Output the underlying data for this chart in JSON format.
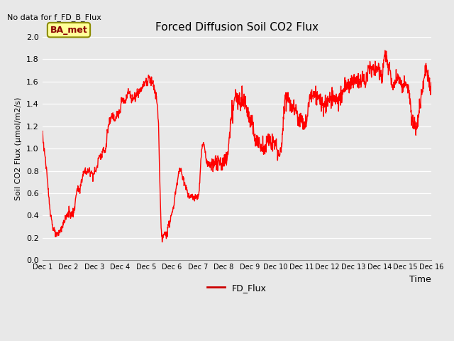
{
  "title": "Forced Diffusion Soil CO2 Flux",
  "no_data_text": "No data for f_FD_B_Flux",
  "xlabel": "Time",
  "ylabel": "Soil CO2 Flux (μmol/m2/s)",
  "ylim": [
    0.0,
    2.0
  ],
  "yticks": [
    0.0,
    0.2,
    0.4,
    0.6,
    0.8,
    1.0,
    1.2,
    1.4,
    1.6,
    1.8,
    2.0
  ],
  "line_color": "#FF0000",
  "line_width": 1.0,
  "bg_color": "#E8E8E8",
  "legend_label": "FD_Flux",
  "legend_line_color": "#CC0000",
  "inset_label": "BA_met",
  "inset_bg": "#FFFF99",
  "inset_border": "#8B8B00",
  "xtick_labels": [
    "Dec 1",
    "Dec 2",
    "Dec 3",
    "Dec 4",
    "Dec 5",
    "Dec 6",
    "Dec 7",
    "Dec 8",
    "Dec 9",
    "Dec 10",
    "Dec 11",
    "Dec 12",
    "Dec 13",
    "Dec 14",
    "Dec 15",
    "Dec 16"
  ],
  "waypoints": [
    [
      0.0,
      1.17
    ],
    [
      0.05,
      1.03
    ],
    [
      0.1,
      0.95
    ],
    [
      0.2,
      0.7
    ],
    [
      0.3,
      0.45
    ],
    [
      0.4,
      0.3
    ],
    [
      0.5,
      0.23
    ],
    [
      0.55,
      0.22
    ],
    [
      0.6,
      0.23
    ],
    [
      0.65,
      0.25
    ],
    [
      0.7,
      0.27
    ],
    [
      0.75,
      0.29
    ],
    [
      0.8,
      0.32
    ],
    [
      0.9,
      0.38
    ],
    [
      1.0,
      0.42
    ],
    [
      1.05,
      0.44
    ],
    [
      1.1,
      0.4
    ],
    [
      1.15,
      0.42
    ],
    [
      1.2,
      0.43
    ],
    [
      1.25,
      0.45
    ],
    [
      1.3,
      0.6
    ],
    [
      1.35,
      0.63
    ],
    [
      1.4,
      0.63
    ],
    [
      1.45,
      0.6
    ],
    [
      1.5,
      0.71
    ],
    [
      1.55,
      0.75
    ],
    [
      1.6,
      0.78
    ],
    [
      1.65,
      0.8
    ],
    [
      1.7,
      0.79
    ],
    [
      1.75,
      0.79
    ],
    [
      1.8,
      0.8
    ],
    [
      1.85,
      0.8
    ],
    [
      1.9,
      0.79
    ],
    [
      1.95,
      0.77
    ],
    [
      2.0,
      0.78
    ],
    [
      2.05,
      0.8
    ],
    [
      2.1,
      0.82
    ],
    [
      2.15,
      0.88
    ],
    [
      2.2,
      0.95
    ],
    [
      2.25,
      0.93
    ],
    [
      2.3,
      0.95
    ],
    [
      2.35,
      1.0
    ],
    [
      2.4,
      0.96
    ],
    [
      2.45,
      1.0
    ],
    [
      2.5,
      1.13
    ],
    [
      2.55,
      1.2
    ],
    [
      2.6,
      1.22
    ],
    [
      2.65,
      1.27
    ],
    [
      2.7,
      1.3
    ],
    [
      2.75,
      1.28
    ],
    [
      2.8,
      1.27
    ],
    [
      2.85,
      1.3
    ],
    [
      2.9,
      1.32
    ],
    [
      2.95,
      1.31
    ],
    [
      3.0,
      1.31
    ],
    [
      3.05,
      1.43
    ],
    [
      3.1,
      1.43
    ],
    [
      3.15,
      1.42
    ],
    [
      3.2,
      1.42
    ],
    [
      3.25,
      1.48
    ],
    [
      3.3,
      1.5
    ],
    [
      3.35,
      1.5
    ],
    [
      3.4,
      1.48
    ],
    [
      3.45,
      1.44
    ],
    [
      3.5,
      1.45
    ],
    [
      3.55,
      1.47
    ],
    [
      3.6,
      1.45
    ],
    [
      3.65,
      1.5
    ],
    [
      3.7,
      1.5
    ],
    [
      3.75,
      1.52
    ],
    [
      3.8,
      1.53
    ],
    [
      3.85,
      1.55
    ],
    [
      3.9,
      1.57
    ],
    [
      3.95,
      1.6
    ],
    [
      4.0,
      1.6
    ],
    [
      4.05,
      1.58
    ],
    [
      4.1,
      1.65
    ],
    [
      4.15,
      1.62
    ],
    [
      4.2,
      1.61
    ],
    [
      4.25,
      1.6
    ],
    [
      4.3,
      1.55
    ],
    [
      4.35,
      1.5
    ],
    [
      4.4,
      1.45
    ],
    [
      4.42,
      1.42
    ],
    [
      4.45,
      1.35
    ],
    [
      4.48,
      1.22
    ],
    [
      4.5,
      1.05
    ],
    [
      4.52,
      0.85
    ],
    [
      4.54,
      0.65
    ],
    [
      4.56,
      0.45
    ],
    [
      4.58,
      0.3
    ],
    [
      4.6,
      0.22
    ],
    [
      4.62,
      0.2
    ],
    [
      4.65,
      0.2
    ],
    [
      4.67,
      0.21
    ],
    [
      4.7,
      0.22
    ],
    [
      4.75,
      0.23
    ],
    [
      4.8,
      0.25
    ],
    [
      4.85,
      0.28
    ],
    [
      4.9,
      0.32
    ],
    [
      4.95,
      0.38
    ],
    [
      5.0,
      0.42
    ],
    [
      5.05,
      0.45
    ],
    [
      5.1,
      0.55
    ],
    [
      5.15,
      0.62
    ],
    [
      5.2,
      0.7
    ],
    [
      5.25,
      0.77
    ],
    [
      5.3,
      0.82
    ],
    [
      5.35,
      0.8
    ],
    [
      5.4,
      0.75
    ],
    [
      5.45,
      0.72
    ],
    [
      5.5,
      0.68
    ],
    [
      5.55,
      0.65
    ],
    [
      5.6,
      0.6
    ],
    [
      5.65,
      0.57
    ],
    [
      5.7,
      0.56
    ],
    [
      5.75,
      0.57
    ],
    [
      5.8,
      0.56
    ],
    [
      5.85,
      0.56
    ],
    [
      5.9,
      0.55
    ],
    [
      5.95,
      0.56
    ],
    [
      6.0,
      0.57
    ],
    [
      6.05,
      0.6
    ],
    [
      6.1,
      0.82
    ],
    [
      6.15,
      1.0
    ],
    [
      6.2,
      1.04
    ],
    [
      6.25,
      1.04
    ],
    [
      6.3,
      0.93
    ],
    [
      6.35,
      0.88
    ],
    [
      6.4,
      0.86
    ],
    [
      6.45,
      0.85
    ],
    [
      6.5,
      0.84
    ],
    [
      6.55,
      0.88
    ],
    [
      6.6,
      0.88
    ],
    [
      6.65,
      0.86
    ],
    [
      6.7,
      0.87
    ],
    [
      6.75,
      0.86
    ],
    [
      6.8,
      0.88
    ],
    [
      6.85,
      0.88
    ],
    [
      6.9,
      0.87
    ],
    [
      6.95,
      0.87
    ],
    [
      7.0,
      0.88
    ],
    [
      7.05,
      0.88
    ],
    [
      7.1,
      0.89
    ],
    [
      7.15,
      0.95
    ],
    [
      7.2,
      1.05
    ],
    [
      7.25,
      1.18
    ],
    [
      7.3,
      1.27
    ],
    [
      7.35,
      1.33
    ],
    [
      7.4,
      1.44
    ],
    [
      7.45,
      1.48
    ],
    [
      7.5,
      1.44
    ],
    [
      7.55,
      1.42
    ],
    [
      7.6,
      1.45
    ],
    [
      7.65,
      1.45
    ],
    [
      7.7,
      1.47
    ],
    [
      7.75,
      1.44
    ],
    [
      7.8,
      1.44
    ],
    [
      7.85,
      1.42
    ],
    [
      7.9,
      1.35
    ],
    [
      7.95,
      1.3
    ],
    [
      8.0,
      1.28
    ],
    [
      8.05,
      1.25
    ],
    [
      8.1,
      1.22
    ],
    [
      8.15,
      1.15
    ],
    [
      8.2,
      1.1
    ],
    [
      8.25,
      1.08
    ],
    [
      8.3,
      1.07
    ],
    [
      8.35,
      1.05
    ],
    [
      8.4,
      1.02
    ],
    [
      8.45,
      1.0
    ],
    [
      8.5,
      1.0
    ],
    [
      8.55,
      1.02
    ],
    [
      8.6,
      1.02
    ],
    [
      8.65,
      1.05
    ],
    [
      8.7,
      1.07
    ],
    [
      8.75,
      1.07
    ],
    [
      8.8,
      1.07
    ],
    [
      8.85,
      1.06
    ],
    [
      8.9,
      1.05
    ],
    [
      8.95,
      1.04
    ],
    [
      9.0,
      1.03
    ],
    [
      9.05,
      1.0
    ],
    [
      9.1,
      0.97
    ],
    [
      9.15,
      0.96
    ],
    [
      9.2,
      0.97
    ],
    [
      9.25,
      1.05
    ],
    [
      9.3,
      1.28
    ],
    [
      9.35,
      1.45
    ],
    [
      9.4,
      1.46
    ],
    [
      9.45,
      1.46
    ],
    [
      9.5,
      1.45
    ],
    [
      9.55,
      1.42
    ],
    [
      9.6,
      1.4
    ],
    [
      9.65,
      1.38
    ],
    [
      9.7,
      1.37
    ],
    [
      9.75,
      1.35
    ],
    [
      9.8,
      1.33
    ],
    [
      9.85,
      1.28
    ],
    [
      9.9,
      1.27
    ],
    [
      9.95,
      1.27
    ],
    [
      10.0,
      1.28
    ],
    [
      10.05,
      1.25
    ],
    [
      10.1,
      1.22
    ],
    [
      10.15,
      1.2
    ],
    [
      10.2,
      1.25
    ],
    [
      10.25,
      1.35
    ],
    [
      10.3,
      1.42
    ],
    [
      10.35,
      1.47
    ],
    [
      10.4,
      1.5
    ],
    [
      10.45,
      1.5
    ],
    [
      10.5,
      1.5
    ],
    [
      10.55,
      1.48
    ],
    [
      10.6,
      1.46
    ],
    [
      10.65,
      1.44
    ],
    [
      10.7,
      1.43
    ],
    [
      10.75,
      1.42
    ],
    [
      10.8,
      1.4
    ],
    [
      10.85,
      1.38
    ],
    [
      10.9,
      1.38
    ],
    [
      10.95,
      1.4
    ],
    [
      11.0,
      1.4
    ],
    [
      11.05,
      1.42
    ],
    [
      11.1,
      1.45
    ],
    [
      11.15,
      1.45
    ],
    [
      11.2,
      1.45
    ],
    [
      11.25,
      1.45
    ],
    [
      11.3,
      1.44
    ],
    [
      11.35,
      1.43
    ],
    [
      11.4,
      1.44
    ],
    [
      11.45,
      1.45
    ],
    [
      11.5,
      1.45
    ],
    [
      11.55,
      1.47
    ],
    [
      11.6,
      1.5
    ],
    [
      11.65,
      1.55
    ],
    [
      11.7,
      1.58
    ],
    [
      11.75,
      1.58
    ],
    [
      11.8,
      1.58
    ],
    [
      11.85,
      1.57
    ],
    [
      11.9,
      1.57
    ],
    [
      11.95,
      1.58
    ],
    [
      12.0,
      1.6
    ],
    [
      12.05,
      1.62
    ],
    [
      12.1,
      1.62
    ],
    [
      12.15,
      1.6
    ],
    [
      12.2,
      1.58
    ],
    [
      12.25,
      1.6
    ],
    [
      12.3,
      1.62
    ],
    [
      12.35,
      1.65
    ],
    [
      12.4,
      1.62
    ],
    [
      12.45,
      1.58
    ],
    [
      12.5,
      1.62
    ],
    [
      12.55,
      1.68
    ],
    [
      12.6,
      1.73
    ],
    [
      12.65,
      1.72
    ],
    [
      12.7,
      1.7
    ],
    [
      12.75,
      1.7
    ],
    [
      12.8,
      1.7
    ],
    [
      12.85,
      1.72
    ],
    [
      12.9,
      1.72
    ],
    [
      12.95,
      1.7
    ],
    [
      13.0,
      1.7
    ],
    [
      13.05,
      1.67
    ],
    [
      13.1,
      1.65
    ],
    [
      13.15,
      1.68
    ],
    [
      13.2,
      1.85
    ],
    [
      13.25,
      1.8
    ],
    [
      13.3,
      1.77
    ],
    [
      13.35,
      1.72
    ],
    [
      13.4,
      1.72
    ],
    [
      13.45,
      1.62
    ],
    [
      13.5,
      1.57
    ],
    [
      13.55,
      1.57
    ],
    [
      13.6,
      1.6
    ],
    [
      13.65,
      1.62
    ],
    [
      13.7,
      1.64
    ],
    [
      13.75,
      1.62
    ],
    [
      13.8,
      1.6
    ],
    [
      13.85,
      1.58
    ],
    [
      13.9,
      1.56
    ],
    [
      13.95,
      1.56
    ],
    [
      14.0,
      1.56
    ],
    [
      14.05,
      1.55
    ],
    [
      14.1,
      1.55
    ],
    [
      14.15,
      1.5
    ],
    [
      14.2,
      1.4
    ],
    [
      14.25,
      1.25
    ],
    [
      14.3,
      1.22
    ],
    [
      14.35,
      1.2
    ],
    [
      14.4,
      1.18
    ],
    [
      14.45,
      1.2
    ],
    [
      14.5,
      1.25
    ],
    [
      14.55,
      1.35
    ],
    [
      14.6,
      1.45
    ],
    [
      14.65,
      1.5
    ],
    [
      14.7,
      1.55
    ],
    [
      14.75,
      1.65
    ],
    [
      14.8,
      1.7
    ],
    [
      14.85,
      1.68
    ],
    [
      14.9,
      1.62
    ],
    [
      14.95,
      1.55
    ],
    [
      15.0,
      1.52
    ]
  ]
}
